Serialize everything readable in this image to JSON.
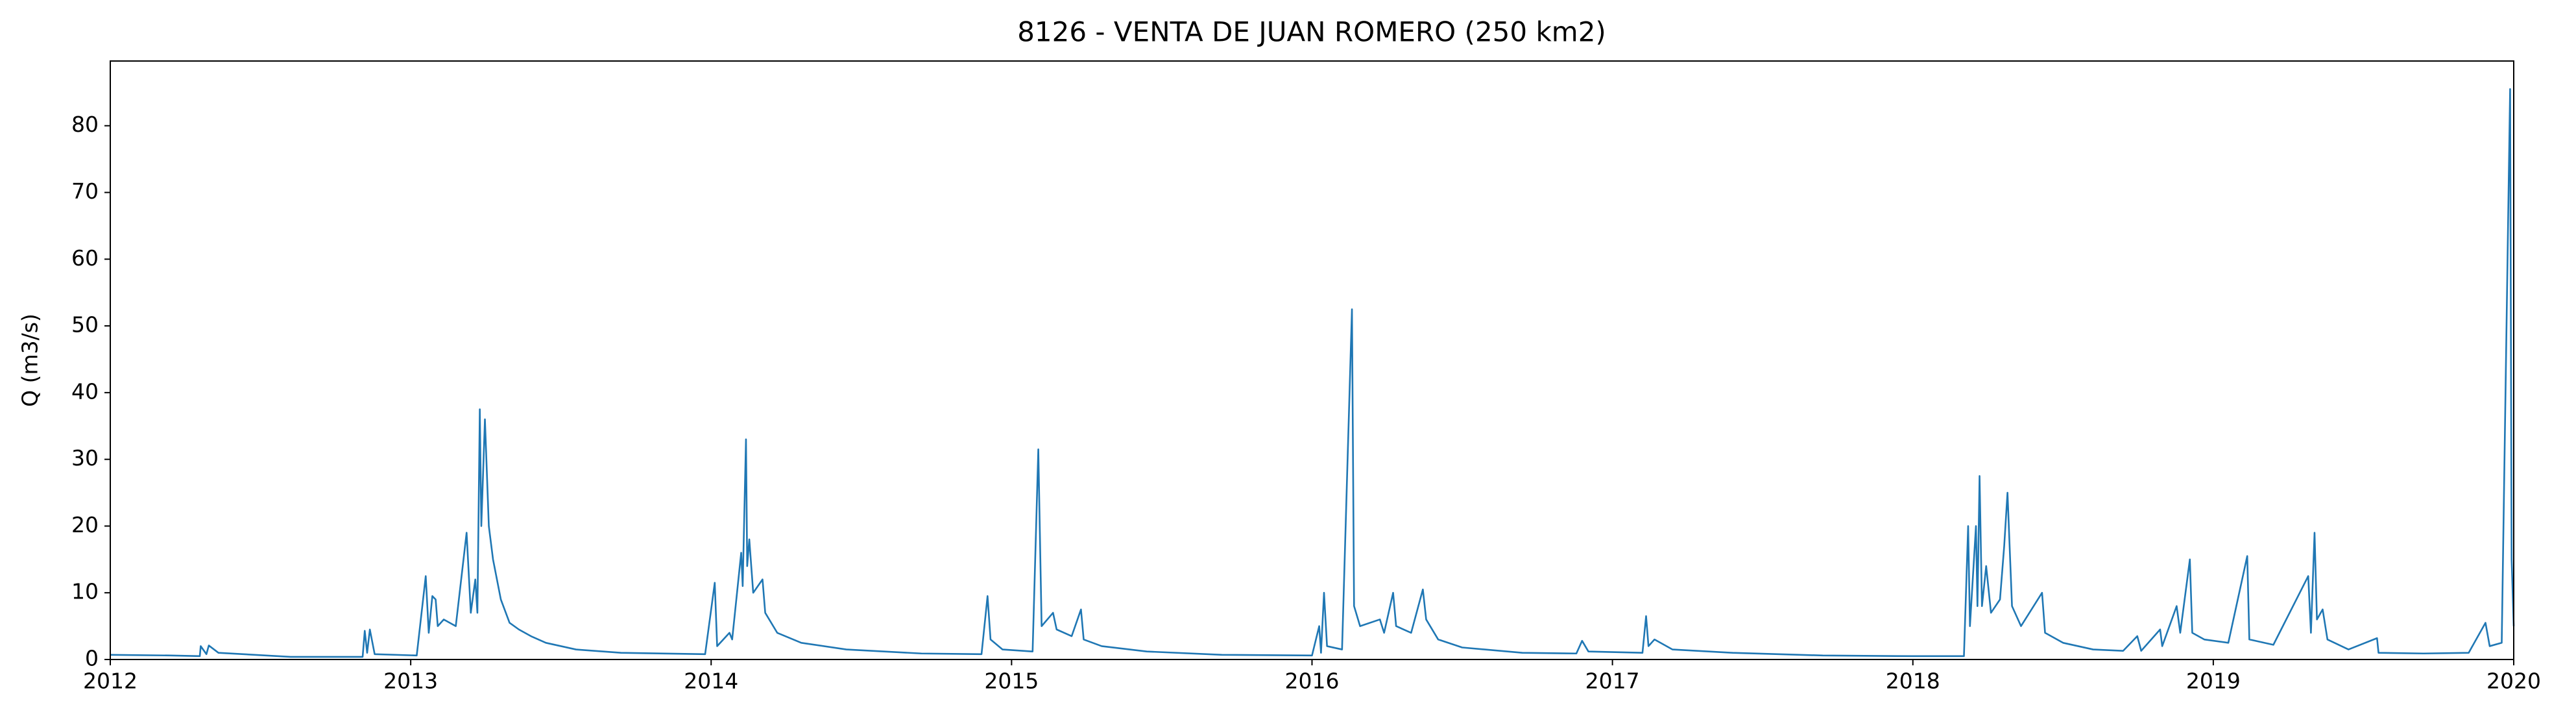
{
  "chart_data": {
    "type": "line",
    "title": "8126 - VENTA DE JUAN ROMERO (250 km2)",
    "ylabel": "Q (m3/s)",
    "xlim": [
      2012,
      2020
    ],
    "xticks": [
      2012,
      2013,
      2014,
      2015,
      2016,
      2017,
      2018,
      2019,
      2020
    ],
    "ylim": [
      0,
      89.7
    ],
    "yticks": [
      0,
      10,
      20,
      30,
      40,
      50,
      60,
      70,
      80
    ],
    "grid": false,
    "series": [
      {
        "color": "#1f77b4",
        "x": [
          2012.0,
          2012.2,
          2012.298,
          2012.301,
          2012.32,
          2012.328,
          2012.36,
          2012.6,
          2012.84,
          2012.847,
          2012.855,
          2012.864,
          2012.88,
          2013.02,
          2013.05,
          2013.06,
          2013.072,
          2013.083,
          2013.09,
          2013.11,
          2013.15,
          2013.186,
          2013.2,
          2013.215,
          2013.222,
          2013.23,
          2013.235,
          2013.247,
          2013.26,
          2013.274,
          2013.3,
          2013.329,
          2013.36,
          2013.4,
          2013.45,
          2013.55,
          2013.7,
          2013.98,
          2014.012,
          2014.02,
          2014.061,
          2014.07,
          2014.1,
          2014.105,
          2014.116,
          2014.12,
          2014.127,
          2014.14,
          2014.171,
          2014.18,
          2014.22,
          2014.3,
          2014.45,
          2014.7,
          2014.9,
          2014.92,
          2014.93,
          2014.97,
          2015.07,
          2015.089,
          2015.1,
          2015.138,
          2015.15,
          2015.2,
          2015.231,
          2015.24,
          2015.3,
          2015.45,
          2015.7,
          2016.0,
          2016.024,
          2016.03,
          2016.04,
          2016.05,
          2016.1,
          2016.133,
          2016.14,
          2016.16,
          2016.226,
          2016.24,
          2016.27,
          2016.28,
          2016.33,
          2016.369,
          2016.38,
          2016.42,
          2016.5,
          2016.7,
          2016.88,
          2016.899,
          2016.92,
          2017.1,
          2017.112,
          2017.12,
          2017.14,
          2017.2,
          2017.4,
          2017.7,
          2018.0,
          2018.17,
          2018.184,
          2018.19,
          2018.21,
          2018.215,
          2018.222,
          2018.23,
          2018.244,
          2018.26,
          2018.29,
          2018.304,
          2018.315,
          2018.33,
          2018.36,
          2018.43,
          2018.44,
          2018.5,
          2018.6,
          2018.7,
          2018.747,
          2018.76,
          2018.823,
          2018.83,
          2018.878,
          2018.89,
          2018.922,
          2018.93,
          2018.97,
          2019.05,
          2019.113,
          2019.12,
          2019.2,
          2019.316,
          2019.325,
          2019.337,
          2019.345,
          2019.364,
          2019.38,
          2019.45,
          2019.545,
          2019.55,
          2019.7,
          2019.85,
          2019.906,
          2019.92,
          2019.96,
          2019.988,
          2019.993,
          2020.0
        ],
        "values": [
          0.7,
          0.6,
          0.5,
          2.0,
          0.8,
          2.1,
          1.0,
          0.4,
          0.4,
          4.3,
          1.0,
          4.5,
          0.8,
          0.6,
          12.5,
          4.0,
          9.5,
          9.0,
          5.0,
          6.0,
          5.0,
          19.0,
          7.0,
          12.0,
          7.0,
          37.5,
          20.0,
          36.0,
          20.0,
          15.0,
          9.0,
          5.5,
          4.5,
          3.5,
          2.5,
          1.5,
          1.0,
          0.8,
          11.5,
          2.0,
          4.0,
          3.0,
          16.0,
          11.0,
          33.0,
          14.0,
          18.0,
          10.0,
          12.0,
          7.0,
          4.0,
          2.5,
          1.5,
          0.9,
          0.8,
          9.5,
          3.0,
          1.5,
          1.2,
          31.5,
          5.0,
          7.0,
          4.5,
          3.5,
          7.5,
          3.0,
          2.0,
          1.2,
          0.7,
          0.6,
          5.0,
          1.0,
          10.0,
          2.0,
          1.5,
          52.5,
          8.0,
          5.0,
          6.0,
          4.0,
          10.0,
          5.0,
          4.0,
          10.5,
          6.0,
          3.0,
          1.8,
          1.0,
          0.9,
          2.8,
          1.2,
          1.0,
          6.5,
          2.0,
          3.0,
          1.5,
          1.0,
          0.6,
          0.5,
          0.5,
          20.0,
          5.0,
          20.0,
          8.0,
          27.5,
          8.0,
          14.0,
          7.0,
          9.0,
          17.0,
          25.0,
          8.0,
          5.0,
          10.0,
          4.0,
          2.5,
          1.5,
          1.3,
          3.5,
          1.3,
          4.5,
          2.0,
          8.0,
          4.0,
          15.0,
          4.0,
          3.0,
          2.5,
          15.5,
          3.0,
          2.2,
          12.5,
          4.0,
          19.0,
          6.0,
          7.5,
          3.0,
          1.5,
          3.2,
          1.0,
          0.9,
          1.0,
          5.5,
          2.0,
          2.5,
          85.5,
          15.0,
          5.0
        ]
      }
    ]
  }
}
